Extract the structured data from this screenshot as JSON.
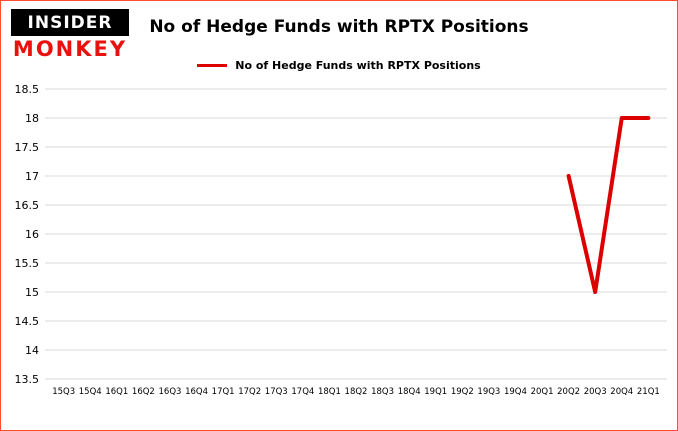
{
  "logo": {
    "line1": "INSIDER",
    "line2": "MONKEY"
  },
  "header": {
    "title": "No of Hedge Funds with RPTX Positions"
  },
  "legend": {
    "label": "No of Hedge Funds with RPTX Positions"
  },
  "colors": {
    "border": "#ff4b2e",
    "logo_red": "#e8110d",
    "grid": "#d8d8d8",
    "line": "#dd0000",
    "text": "#000000"
  },
  "chart_data": {
    "type": "line",
    "title": "No of Hedge Funds with RPTX Positions",
    "categories": [
      "15Q3",
      "15Q4",
      "16Q1",
      "16Q2",
      "16Q3",
      "16Q4",
      "17Q1",
      "17Q2",
      "17Q3",
      "17Q4",
      "18Q1",
      "18Q2",
      "18Q3",
      "18Q4",
      "19Q1",
      "19Q2",
      "19Q3",
      "19Q4",
      "20Q1",
      "20Q2",
      "20Q3",
      "20Q4",
      "21Q1"
    ],
    "series": [
      {
        "name": "No of Hedge Funds with RPTX Positions",
        "values": [
          null,
          null,
          null,
          null,
          null,
          null,
          null,
          null,
          null,
          null,
          null,
          null,
          null,
          null,
          null,
          null,
          null,
          null,
          null,
          17,
          15,
          18,
          18
        ]
      }
    ],
    "xlabel": "",
    "ylabel": "",
    "ylim": [
      13.5,
      18.5
    ],
    "ytick_step": 0.5,
    "grid": "horizontal",
    "legend_position": "top-center"
  }
}
